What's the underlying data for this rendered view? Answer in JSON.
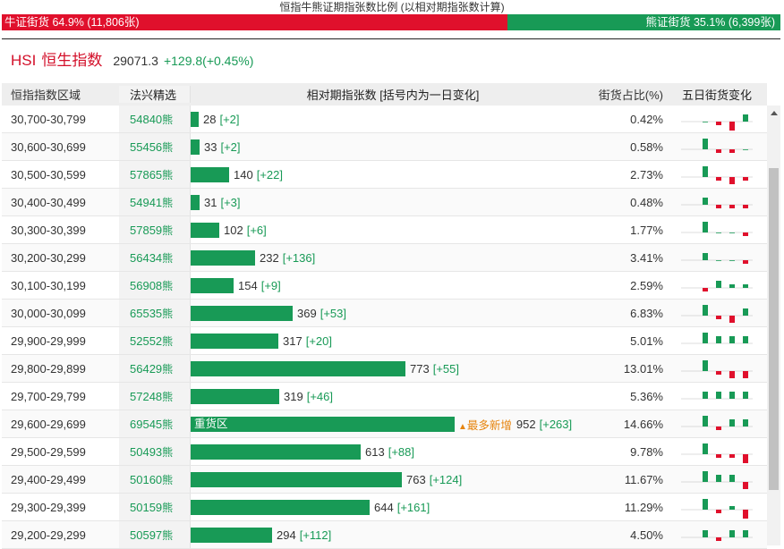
{
  "ratio": {
    "title": "恒指牛熊证期指张数比例 (以相对期指张数计算)",
    "bull_label": "牛证街货 64.9% (11,806张)",
    "bear_label": "熊证街货 35.1% (6,399张)",
    "bull_pct": 64.9,
    "bear_pct": 35.1,
    "bull_color": "#e0102c",
    "bear_color": "#189a56"
  },
  "index": {
    "code": "HSI",
    "name": "恒生指数",
    "price": "29071.3",
    "change": "+129.8(+0.45%)"
  },
  "table": {
    "headers": [
      "恒指指数区域",
      "法兴精选",
      "相对期指张数 [括号内为一日变化]",
      "街货占比(%)",
      "五日街货变化"
    ],
    "code_suffix": "熊",
    "max_contracts": 952,
    "rows": [
      {
        "range": "30,700-30,799",
        "code": "54840",
        "contracts": 28,
        "value": "28",
        "delta": "[+2]",
        "share": "0.42%",
        "spark": [
          0,
          -1,
          -3,
          2,
          2
        ]
      },
      {
        "range": "30,600-30,699",
        "code": "55456",
        "contracts": 33,
        "value": "33",
        "delta": "[+2]",
        "share": "0.58%",
        "spark": [
          3,
          -1,
          -1,
          0,
          -1
        ]
      },
      {
        "range": "30,500-30,599",
        "code": "57865",
        "contracts": 140,
        "value": "140",
        "delta": "[+22]",
        "share": "2.73%",
        "spark": [
          3,
          -1,
          -2,
          -1,
          3
        ]
      },
      {
        "range": "30,400-30,499",
        "code": "54941",
        "contracts": 31,
        "value": "31",
        "delta": "[+3]",
        "share": "0.48%",
        "spark": [
          2,
          -1,
          -1,
          -1,
          3
        ]
      },
      {
        "range": "30,300-30,399",
        "code": "57859",
        "contracts": 102,
        "value": "102",
        "delta": "[+6]",
        "share": "1.77%",
        "spark": [
          3,
          0,
          0,
          -1,
          1
        ]
      },
      {
        "range": "30,200-30,299",
        "code": "56434",
        "contracts": 232,
        "value": "232",
        "delta": "[+136]",
        "share": "3.41%",
        "spark": [
          2,
          0,
          0,
          -1,
          3
        ]
      },
      {
        "range": "30,100-30,199",
        "code": "56908",
        "contracts": 154,
        "value": "154",
        "delta": "[+9]",
        "share": "2.59%",
        "spark": [
          -1,
          2,
          1,
          1,
          1
        ]
      },
      {
        "range": "30,000-30,099",
        "code": "65535",
        "contracts": 369,
        "value": "369",
        "delta": "[+53]",
        "share": "6.83%",
        "spark": [
          3,
          -1,
          -2,
          2,
          3
        ]
      },
      {
        "range": "29,900-29,999",
        "code": "52552",
        "contracts": 317,
        "value": "317",
        "delta": "[+20]",
        "share": "5.01%",
        "spark": [
          3,
          2,
          2,
          2,
          2
        ]
      },
      {
        "range": "29,800-29,899",
        "code": "56429",
        "contracts": 773,
        "value": "773",
        "delta": "[+55]",
        "share": "13.01%",
        "spark": [
          3,
          -1,
          -2,
          -2,
          1
        ]
      },
      {
        "range": "29,700-29,799",
        "code": "57248",
        "contracts": 319,
        "value": "319",
        "delta": "[+46]",
        "share": "5.36%",
        "spark": [
          2,
          2,
          2,
          2,
          2
        ]
      },
      {
        "range": "29,600-29,699",
        "code": "69545",
        "contracts": 952,
        "value": "952",
        "delta": "[+263]",
        "share": "14.66%",
        "spark": [
          3,
          -1,
          2,
          2,
          3
        ],
        "bar_label": "重货区",
        "badge": "最多新增"
      },
      {
        "range": "29,500-29,599",
        "code": "50493",
        "contracts": 613,
        "value": "613",
        "delta": "[+88]",
        "share": "9.78%",
        "spark": [
          3,
          -1,
          -1,
          -3,
          2
        ]
      },
      {
        "range": "29,400-29,499",
        "code": "50160",
        "contracts": 763,
        "value": "763",
        "delta": "[+124]",
        "share": "11.67%",
        "spark": [
          3,
          2,
          2,
          -2,
          3
        ]
      },
      {
        "range": "29,300-29,399",
        "code": "50159",
        "contracts": 644,
        "value": "644",
        "delta": "[+161]",
        "share": "11.29%",
        "spark": [
          3,
          -1,
          1,
          -3,
          3
        ]
      },
      {
        "range": "29,200-29,299",
        "code": "50597",
        "contracts": 294,
        "value": "294",
        "delta": "[+112]",
        "share": "4.50%",
        "spark": [
          2,
          -1,
          2,
          2,
          3
        ]
      }
    ]
  }
}
